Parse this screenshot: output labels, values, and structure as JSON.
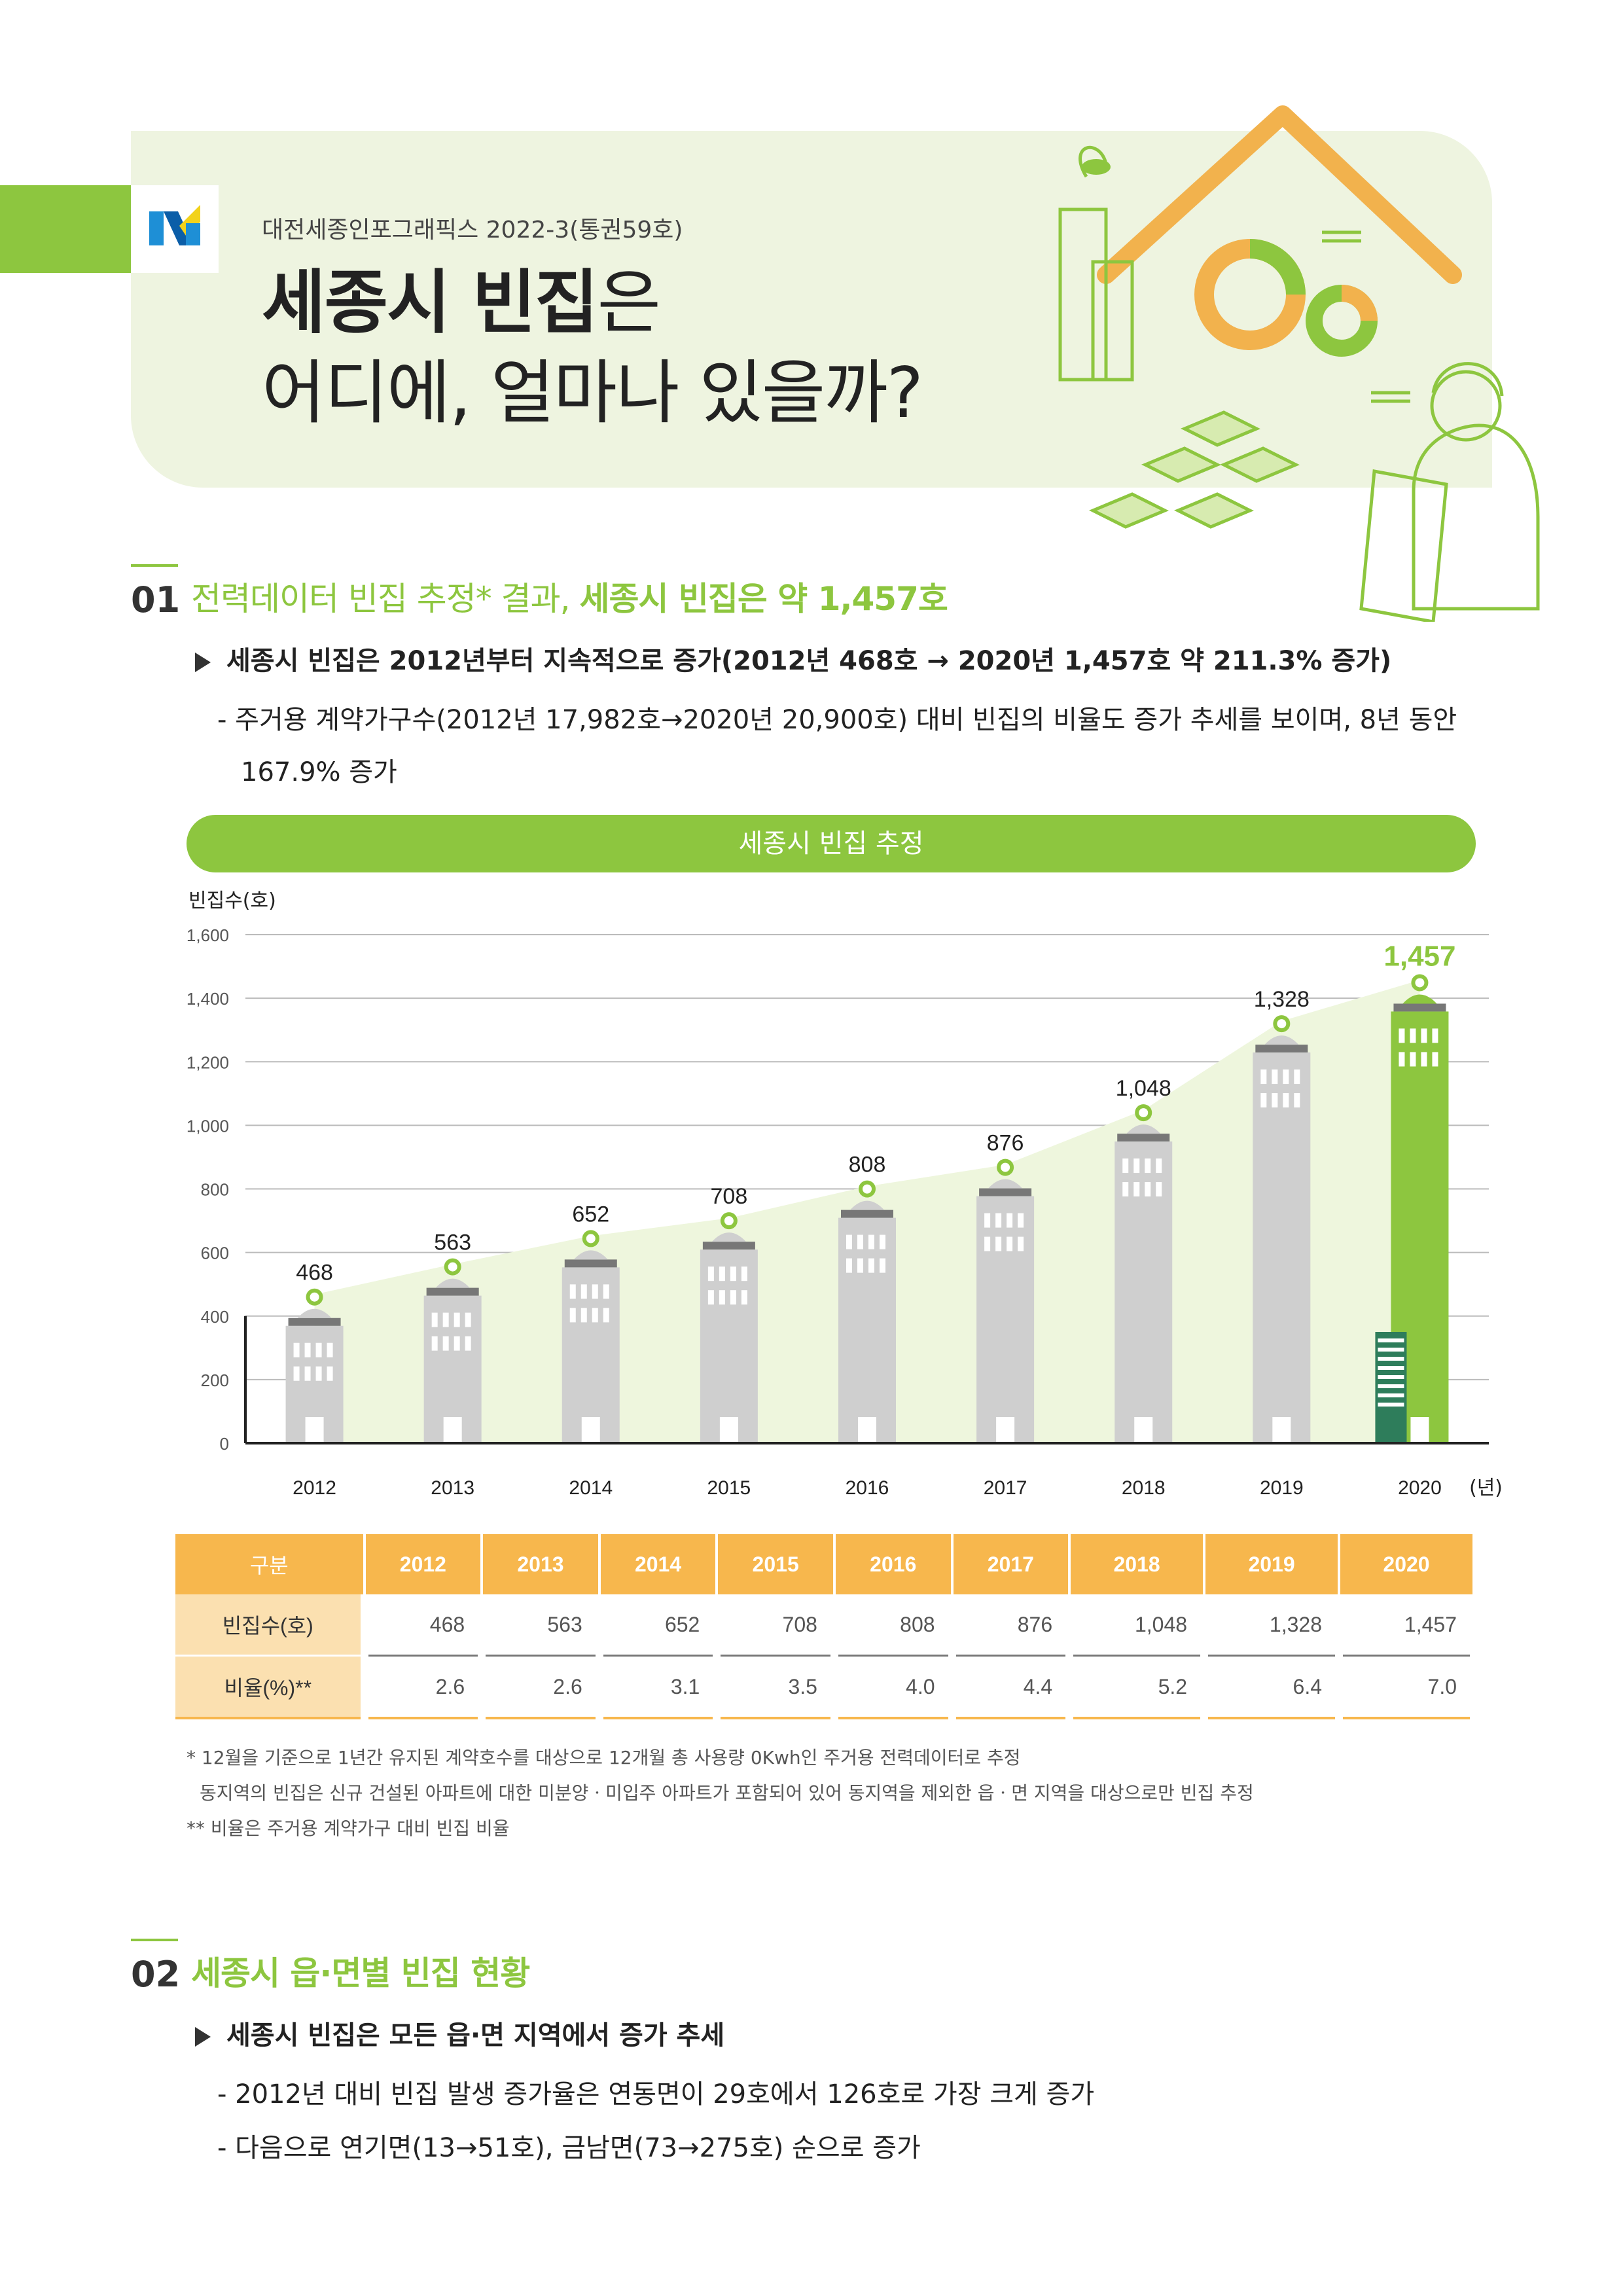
{
  "header": {
    "publication": "대전세종인포그래픽스 2022-3(통권59호)",
    "title_bold": "세종시 빈집",
    "title_suffix": "은",
    "title_line2": "어디에, 얼마나 있을까?"
  },
  "section1": {
    "number": "01",
    "title_light": "전력데이터 빈집 추정* 결과,",
    "title_bold": "세종시 빈집은 약 1,457호",
    "bullet": "세종시 빈집은 2012년부터 지속적으로 증가(2012년 468호 → 2020년 1,457호 약 211.3% 증가)",
    "detail_line1": "- 주거용 계약가구수(2012년 17,982호→2020년 20,900호) 대비 빈집의 비율도 증가 추세를 보이며, 8년 동안",
    "detail_line2": "167.9% 증가"
  },
  "chart_data": {
    "type": "bar",
    "title": "세종시 빈집 추정",
    "ylabel": "빈집수(호)",
    "xlabel": "(년)",
    "categories": [
      "2012",
      "2013",
      "2014",
      "2015",
      "2016",
      "2017",
      "2018",
      "2019",
      "2020"
    ],
    "values": [
      468,
      563,
      652,
      708,
      808,
      876,
      1048,
      1328,
      1457
    ],
    "value_labels": [
      "468",
      "563",
      "652",
      "708",
      "808",
      "876",
      "1,048",
      "1,328",
      "1,457"
    ],
    "yticks": [
      "0",
      "200",
      "400",
      "600",
      "800",
      "1,000",
      "1,200",
      "1,400",
      "1,600"
    ],
    "ylim": [
      0,
      1600
    ],
    "grid": true,
    "colors": {
      "bar": "#cfcfcf",
      "highlight": "#8dc63f",
      "trend": "#eef6dd",
      "marker": "#8dc63f"
    }
  },
  "table": {
    "headers": [
      "구분",
      "2012",
      "2013",
      "2014",
      "2015",
      "2016",
      "2017",
      "2018",
      "2019",
      "2020"
    ],
    "rows": [
      {
        "label": "빈집수(호)",
        "values": [
          "468",
          "563",
          "652",
          "708",
          "808",
          "876",
          "1,048",
          "1,328",
          "1,457"
        ]
      },
      {
        "label": "비율(%)**",
        "values": [
          "2.6",
          "2.6",
          "3.1",
          "3.5",
          "4.0",
          "4.4",
          "5.2",
          "6.4",
          "7.0"
        ]
      }
    ]
  },
  "notes": [
    "* 12월을 기준으로 1년간 유지된 계약호수를 대상으로 12개월 총 사용량 0Kwh인 주거용 전력데이터로 추정",
    "동지역의 빈집은 신규 건설된 아파트에 대한 미분양ㆍ미입주 아파트가 포함되어 있어 동지역을 제외한 읍ㆍ면 지역을 대상으로만 빈집 추정",
    "** 비율은 주거용 계약가구 대비 빈집 비율"
  ],
  "section2": {
    "number": "02",
    "title": "세종시 읍·면별 빈집 현황",
    "bullet": "세종시 빈집은 모든 읍·면 지역에서 증가 추세",
    "detail1": "- 2012년 대비 빈집 발생 증가율은 연동면이 29호에서 126호로 가장 크게 증가",
    "detail2": "- 다음으로 연기면(13→51호), 금남면(73→275호) 순으로 증가"
  },
  "colors": {
    "accent": "#8dc63f",
    "orange": "#f7b74d",
    "hero_bg": "#eef4e0"
  }
}
